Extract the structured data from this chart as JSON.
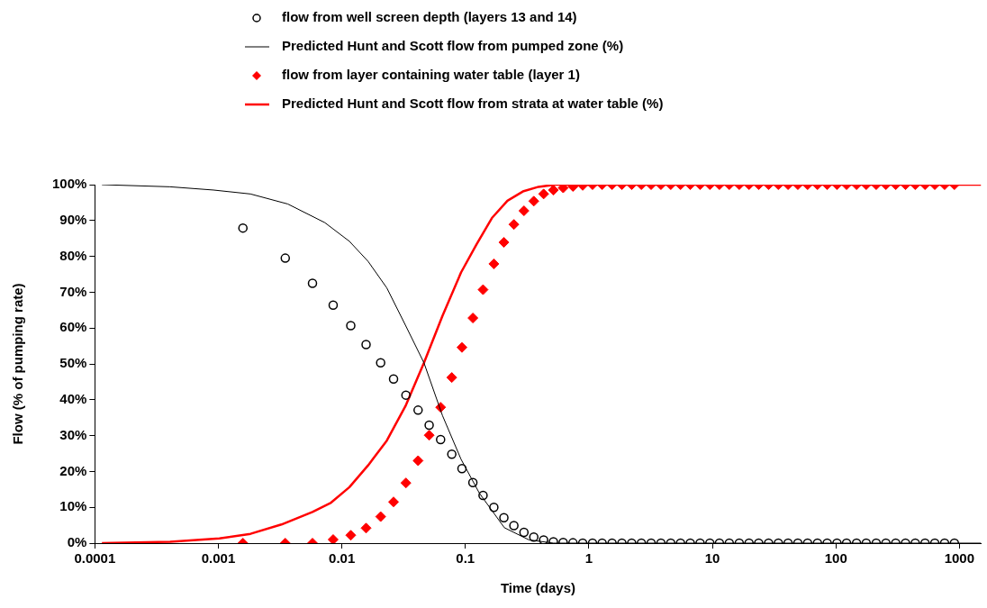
{
  "chart_data": {
    "type": "line",
    "xlabel": "Time (days)",
    "ylabel": "Flow (% of pumping rate)",
    "log": "x",
    "grid": false,
    "legend": "top",
    "xlim": [
      0.0001,
      1500
    ],
    "xticks": [
      0.0001,
      0.001,
      0.01,
      0.1,
      1,
      10,
      100,
      1000
    ],
    "ylim": [
      0,
      100
    ],
    "yticks": [
      {
        "value": 0,
        "label": "0%"
      },
      {
        "value": 10,
        "label": "10%"
      },
      {
        "value": 20,
        "label": "20%"
      },
      {
        "value": 30,
        "label": "30%"
      },
      {
        "value": 40,
        "label": "40%"
      },
      {
        "value": 50,
        "label": "50%"
      },
      {
        "value": 60,
        "label": "60%"
      },
      {
        "value": 70,
        "label": "70%"
      },
      {
        "value": 80,
        "label": "80%"
      },
      {
        "value": 90,
        "label": "90%"
      },
      {
        "value": 100,
        "label": "100%"
      }
    ],
    "series": [
      {
        "name": "flow from well screen depth (layers 13 and 14)",
        "type": "scatter",
        "marker": "circle",
        "color": "#000000",
        "x": [
          0.00158,
          0.00348,
          0.00578,
          0.0085,
          0.0118,
          0.0157,
          0.0206,
          0.0262,
          0.033,
          0.0414,
          0.0509,
          0.063,
          0.0776,
          0.0938,
          0.115,
          0.139,
          0.17,
          0.205,
          0.247,
          0.298,
          0.358,
          0.43,
          0.516,
          0.619,
          0.743,
          0.891,
          1.07,
          1.28,
          1.54,
          1.85,
          2.22,
          2.66,
          3.19,
          3.83,
          4.6,
          5.52,
          6.62,
          7.95,
          9.54,
          11.4,
          13.7,
          16.5,
          19.8,
          23.7,
          28.5,
          34.2,
          41,
          49.2,
          59,
          70.9,
          85,
          102,
          122,
          147,
          176,
          212,
          254,
          305,
          366,
          439,
          527,
          632,
          759,
          911
        ],
        "values": [
          87.9,
          79.5,
          72.5,
          66.4,
          60.7,
          55.4,
          50.3,
          45.8,
          41.3,
          37.1,
          32.9,
          28.9,
          24.8,
          20.8,
          16.9,
          13.3,
          10.0,
          7.1,
          4.9,
          3.0,
          1.7,
          0.9,
          0.4,
          0.2,
          0.1,
          0,
          0,
          0,
          0,
          0,
          0,
          0,
          0,
          0,
          0,
          0,
          0,
          0,
          0,
          0,
          0,
          0,
          0,
          0,
          0,
          0,
          0,
          0,
          0,
          0,
          0,
          0,
          0,
          0,
          0,
          0,
          0,
          0,
          0,
          0,
          0,
          0,
          0,
          0
        ]
      },
      {
        "name": "Predicted Hunt and Scott flow from pumped zone (%)",
        "type": "line",
        "marker": "none",
        "color": "#000000",
        "x": [
          0.000114,
          0.000406,
          0.000912,
          0.00182,
          0.00365,
          0.00728,
          0.0115,
          0.0163,
          0.0231,
          0.0327,
          0.0462,
          0.0652,
          0.0922,
          0.13,
          0.207,
          0.328,
          0.518,
          1500
        ],
        "values": [
          100,
          99.4,
          98.5,
          97.4,
          94.6,
          89.4,
          84.2,
          78.6,
          71.2,
          60.8,
          50.3,
          35.6,
          23.4,
          13.9,
          4.3,
          0.9,
          0,
          0
        ]
      },
      {
        "name": "flow from layer containing water table (layer 1)",
        "type": "scatter",
        "marker": "diamond",
        "color": "#ff0000",
        "x": [
          0.00158,
          0.00348,
          0.00578,
          0.0085,
          0.0118,
          0.0157,
          0.0206,
          0.0262,
          0.033,
          0.0414,
          0.0509,
          0.063,
          0.0776,
          0.0938,
          0.115,
          0.139,
          0.17,
          0.205,
          0.247,
          0.298,
          0.358,
          0.43,
          0.516,
          0.619,
          0.743,
          0.891,
          1.07,
          1.28,
          1.54,
          1.85,
          2.22,
          2.66,
          3.19,
          3.83,
          4.6,
          5.52,
          6.62,
          7.95,
          9.54,
          11.4,
          13.7,
          16.5,
          19.8,
          23.7,
          28.5,
          34.2,
          41,
          49.2,
          59,
          70.9,
          85,
          102,
          122,
          147,
          176,
          212,
          254,
          305,
          366,
          439,
          527,
          632,
          759,
          911
        ],
        "values": [
          0,
          0,
          0,
          1.0,
          2.2,
          4.2,
          7.4,
          11.5,
          16.8,
          23.0,
          30.1,
          37.9,
          46.2,
          54.6,
          62.8,
          70.7,
          77.9,
          83.9,
          88.9,
          92.7,
          95.4,
          97.4,
          98.5,
          99.1,
          99.5,
          99.8,
          100,
          100,
          100,
          100,
          100,
          100,
          100,
          100,
          100,
          100,
          100,
          100,
          100,
          100,
          100,
          100,
          100,
          100,
          100,
          100,
          100,
          100,
          100,
          100,
          100,
          100,
          100,
          100,
          100,
          100,
          100,
          100,
          100,
          100,
          100,
          100,
          100,
          100
        ]
      },
      {
        "name": "Predicted Hunt and Scott flow from strata at water table (%)",
        "type": "line",
        "marker": "none",
        "color": "#ff0000",
        "x": [
          0.000114,
          0.000406,
          0.00102,
          0.00182,
          0.00324,
          0.00578,
          0.00817,
          0.0115,
          0.0163,
          0.0231,
          0.0327,
          0.0462,
          0.0652,
          0.0922,
          0.123,
          0.164,
          0.219,
          0.292,
          0.391,
          0.536,
          1500
        ],
        "values": [
          0,
          0.4,
          1.3,
          2.6,
          5.2,
          8.7,
          11.3,
          15.6,
          21.7,
          28.6,
          38.2,
          50.3,
          63.4,
          75.5,
          83.3,
          90.7,
          95.5,
          98.1,
          99.4,
          100,
          100
        ]
      }
    ]
  }
}
